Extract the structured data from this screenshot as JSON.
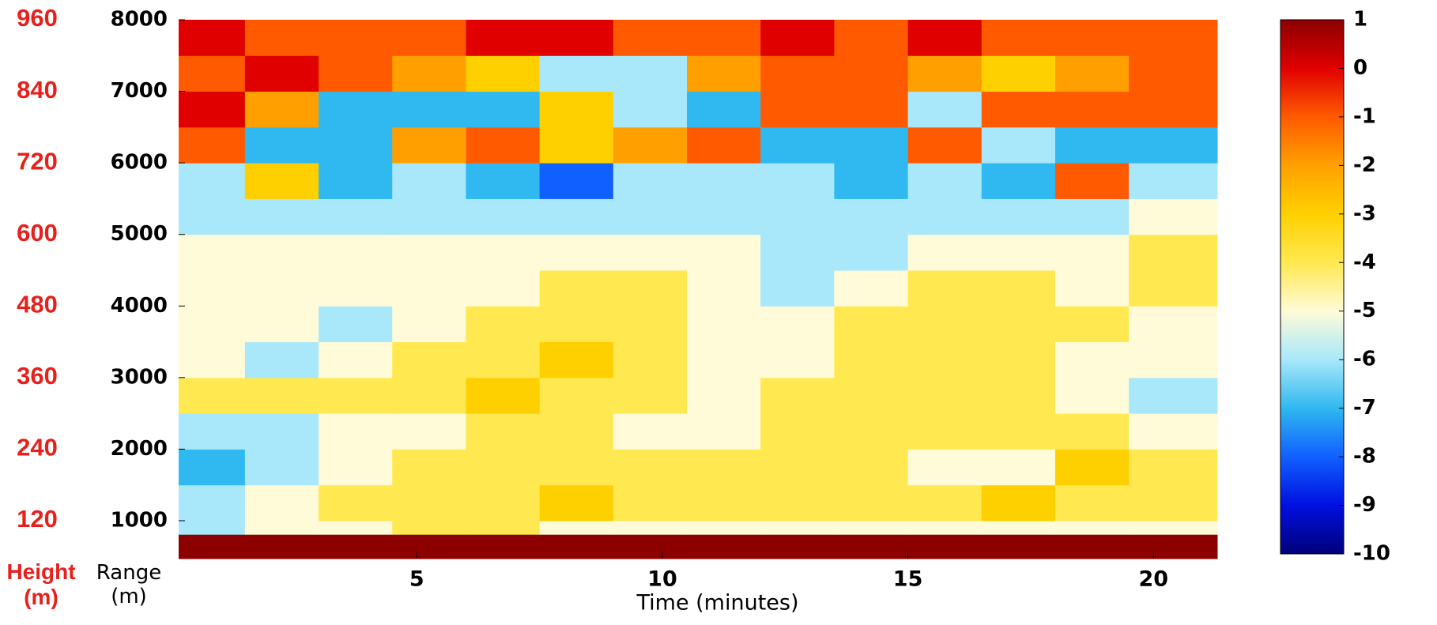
{
  "chart_data": {
    "type": "heatmap",
    "xlabel": "Time (minutes)",
    "ylabel": "Range (m)",
    "y2label": "Height (m)",
    "y2color": "#e8201c",
    "xlim": [
      0.15,
      21.3
    ],
    "xticks": [
      5,
      10,
      15,
      20
    ],
    "ylim": [
      470,
      8000
    ],
    "yticks": [
      1000,
      2000,
      3000,
      4000,
      5000,
      6000,
      7000,
      8000
    ],
    "y2lim": [
      56.4,
      960
    ],
    "y2ticks": [
      120,
      240,
      360,
      480,
      600,
      720,
      840,
      960
    ],
    "zlim": [
      -10,
      1
    ],
    "zticks": [
      -10,
      -9,
      -8,
      -7,
      -6,
      -5,
      -4,
      -3,
      -2,
      -1,
      0,
      1
    ],
    "colorscale": [
      "#00007a",
      "#0010e0",
      "#1060ff",
      "#30b8f0",
      "#a8e8fa",
      "#fffbd8",
      "#ffe850",
      "#ffd000",
      "#ffa000",
      "#ff5a00",
      "#e00000",
      "#8c0000"
    ],
    "x_bins": [
      0.15,
      1.5,
      3,
      4.5,
      6,
      7.5,
      9,
      10.5,
      12,
      13.5,
      15,
      16.5,
      18,
      19.5,
      21.3
    ],
    "y_bins": [
      470,
      810,
      1000,
      1500,
      2000,
      2500,
      3000,
      3500,
      4000,
      4500,
      5000,
      5500,
      6000,
      6500,
      7000,
      7500,
      8000
    ],
    "z": [
      [
        1,
        1,
        1,
        1,
        1,
        1,
        1,
        1,
        1,
        1,
        1,
        1,
        1,
        1
      ],
      [
        -6,
        -5,
        -5,
        -4,
        -4,
        -5,
        -5,
        -5,
        -5,
        -5,
        -5,
        -5,
        -5,
        -5
      ],
      [
        -6,
        -5,
        -4,
        -4,
        -4,
        -3,
        -4,
        -4,
        -4,
        -4,
        -4,
        -3,
        -4,
        -4
      ],
      [
        -7,
        -6,
        -5,
        -4,
        -4,
        -4,
        -4,
        -4,
        -4,
        -4,
        -5,
        -5,
        -3,
        -4
      ],
      [
        -6,
        -6,
        -5,
        -5,
        -4,
        -4,
        -5,
        -5,
        -4,
        -4,
        -4,
        -4,
        -4,
        -5
      ],
      [
        -4,
        -4,
        -4,
        -4,
        -3,
        -4,
        -4,
        -5,
        -4,
        -4,
        -4,
        -4,
        -5,
        -6
      ],
      [
        -5,
        -6,
        -5,
        -4,
        -4,
        -3,
        -4,
        -5,
        -5,
        -4,
        -4,
        -4,
        -5,
        -5
      ],
      [
        -5,
        -5,
        -6,
        -5,
        -4,
        -4,
        -4,
        -5,
        -5,
        -4,
        -4,
        -4,
        -4,
        -5
      ],
      [
        -5,
        -5,
        -5,
        -5,
        -5,
        -4,
        -4,
        -5,
        -6,
        -5,
        -4,
        -4,
        -5,
        -4
      ],
      [
        -5,
        -5,
        -5,
        -5,
        -5,
        -5,
        -5,
        -5,
        -6,
        -6,
        -5,
        -5,
        -5,
        -4
      ],
      [
        -6,
        -6,
        -6,
        -6,
        -6,
        -6,
        -6,
        -6,
        -6,
        -6,
        -6,
        -6,
        -6,
        -5
      ],
      [
        -6,
        -3,
        -7,
        -6,
        -7,
        -8,
        -6,
        -6,
        -6,
        -7,
        -6,
        -7,
        -1,
        -6
      ],
      [
        -1,
        -7,
        -7,
        -2,
        -1,
        -3,
        -2,
        -1,
        -7,
        -7,
        -1,
        -6,
        -7,
        -7
      ],
      [
        0,
        -2,
        -7,
        -7,
        -7,
        -3,
        -6,
        -7,
        -1,
        -1,
        -6,
        -1,
        -1,
        -1
      ],
      [
        -1,
        0,
        -1,
        -2,
        -3,
        -6,
        -6,
        -2,
        -1,
        -1,
        -2,
        -3,
        -2,
        -1
      ],
      [
        0,
        -1,
        -1,
        -1,
        0,
        0,
        -1,
        -1,
        0,
        -1,
        0,
        -1,
        -1,
        -1
      ]
    ]
  }
}
